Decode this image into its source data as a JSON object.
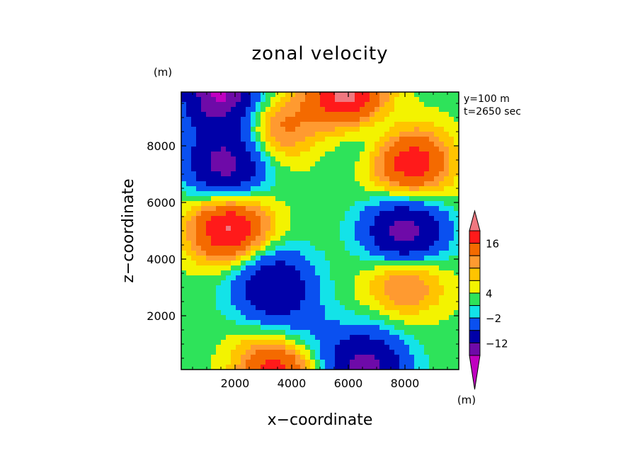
{
  "chart_data": {
    "type": "heatmap",
    "title": "zonal velocity",
    "xlabel": "x−coordinate",
    "ylabel": "z−coordinate",
    "x_unit": "(m)",
    "y_unit": "(m)",
    "annotations": [
      "y=100 m",
      "t=2650 sec"
    ],
    "xlim": [
      100,
      9900
    ],
    "ylim": [
      100,
      9900
    ],
    "xticks": [
      2000,
      4000,
      6000,
      8000
    ],
    "yticks": [
      2000,
      4000,
      6000,
      8000
    ],
    "colorbar": {
      "unit": "(m)",
      "labeled_levels": [
        "16",
        "4",
        "−2",
        "−12"
      ],
      "bins": [
        {
          "color": "#f07880",
          "range": "> 16"
        },
        {
          "color": "#ff1a1a",
          "range": "12 to 16"
        },
        {
          "color": "#f46a00",
          "range": "8 to 12"
        },
        {
          "color": "#ff9a30",
          "range": "6 to 8"
        },
        {
          "color": "#ffc400",
          "range": "4 to 6"
        },
        {
          "color": "#f3f300",
          "range": "2 to 4"
        },
        {
          "color": "#2ee35a",
          "range": "0 to 2"
        },
        {
          "color": "#13e3e8",
          "range": "−2 to 0"
        },
        {
          "color": "#0a50f0",
          "range": "−6 to −2"
        },
        {
          "color": "#0000a8",
          "range": "−12 to −6"
        },
        {
          "color": "#6e0aa8",
          "range": "−16 to −12"
        },
        {
          "color": "#c000c0",
          "range": "< −16"
        }
      ]
    },
    "field_extrema": [
      {
        "x": 1800,
        "z": 5100,
        "value": 16,
        "kind": "max"
      },
      {
        "x": 8200,
        "z": 7400,
        "value": 14,
        "kind": "max"
      },
      {
        "x": 3400,
        "z": 8600,
        "value": 8,
        "kind": "max"
      },
      {
        "x": 8000,
        "z": 3300,
        "value": 9,
        "kind": "max"
      },
      {
        "x": 6000,
        "z": 9700,
        "value": 18,
        "kind": "max"
      },
      {
        "x": 3500,
        "z": 200,
        "value": 14,
        "kind": "max"
      },
      {
        "x": 1700,
        "z": 7300,
        "value": -16,
        "kind": "min"
      },
      {
        "x": 8000,
        "z": 4900,
        "value": -17,
        "kind": "min"
      },
      {
        "x": 3300,
        "z": 3100,
        "value": -13,
        "kind": "min"
      },
      {
        "x": 6600,
        "z": 200,
        "value": -15,
        "kind": "min"
      },
      {
        "x": 1500,
        "z": 9800,
        "value": -18,
        "kind": "min"
      },
      {
        "x": 4200,
        "z": 1200,
        "value": -5,
        "kind": "min"
      },
      {
        "x": 6600,
        "z": 8700,
        "value": -6,
        "kind": "min"
      }
    ]
  }
}
